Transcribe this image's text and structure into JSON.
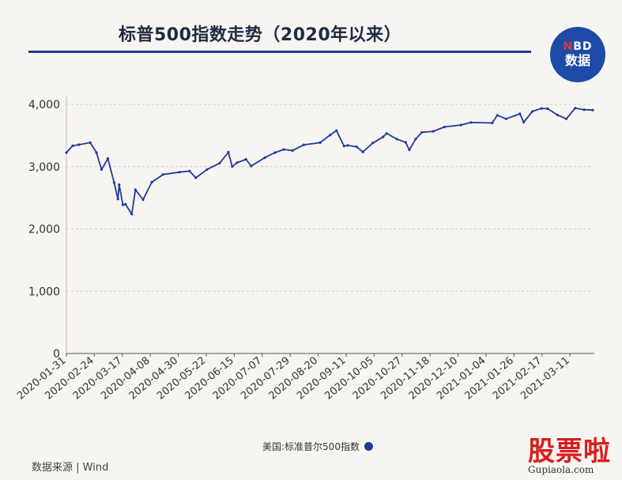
{
  "title": "标普500指数走势（2020年以来）",
  "logo": {
    "line1_n": "N",
    "line1_rest": "BD",
    "line2": "数据"
  },
  "source": "数据来源 | Wind",
  "watermark": {
    "brand": "股票啦",
    "site": "Gupiaola.com"
  },
  "chart_data": {
    "type": "line",
    "title": "标普500指数走势（2020年以来）",
    "xlabel": "",
    "ylabel": "",
    "ylim": [
      0,
      4000
    ],
    "yticks": [
      0,
      1000,
      2000,
      3000,
      4000
    ],
    "ytick_labels": [
      "0",
      "1,000",
      "2,000",
      "3,000",
      "4,000"
    ],
    "xtick_labels": [
      "2020-01-31",
      "2020-02-24",
      "2020-03-17",
      "2020-04-08",
      "2020-04-30",
      "2020-05-22",
      "2020-06-15",
      "2020-07-07",
      "2020-07-29",
      "2020-08-20",
      "2020-09-11",
      "2020-10-05",
      "2020-10-27",
      "2020-11-18",
      "2020-12-10",
      "2021-01-04",
      "2021-01-26",
      "2021-02-17",
      "2021-03-11"
    ],
    "grid": true,
    "legend_position": "bottom",
    "series": [
      {
        "name": "美国:标准普尔500指数",
        "color": "#1e3a9c",
        "x": [
          "2020-01-31",
          "2020-02-05",
          "2020-02-10",
          "2020-02-19",
          "2020-02-24",
          "2020-02-28",
          "2020-03-04",
          "2020-03-09",
          "2020-03-12",
          "2020-03-13",
          "2020-03-16",
          "2020-03-18",
          "2020-03-23",
          "2020-03-26",
          "2020-04-01",
          "2020-04-08",
          "2020-04-17",
          "2020-04-30",
          "2020-05-08",
          "2020-05-13",
          "2020-05-22",
          "2020-06-01",
          "2020-06-08",
          "2020-06-11",
          "2020-06-15",
          "2020-06-22",
          "2020-06-26",
          "2020-07-07",
          "2020-07-15",
          "2020-07-22",
          "2020-07-29",
          "2020-08-07",
          "2020-08-20",
          "2020-08-28",
          "2020-09-02",
          "2020-09-08",
          "2020-09-11",
          "2020-09-18",
          "2020-09-23",
          "2020-10-01",
          "2020-10-09",
          "2020-10-12",
          "2020-10-20",
          "2020-10-27",
          "2020-10-30",
          "2020-11-04",
          "2020-11-09",
          "2020-11-18",
          "2020-11-27",
          "2020-12-10",
          "2020-12-18",
          "2021-01-04",
          "2021-01-08",
          "2021-01-15",
          "2021-01-26",
          "2021-01-29",
          "2021-02-05",
          "2021-02-12",
          "2021-02-17",
          "2021-02-25",
          "2021-03-04",
          "2021-03-11",
          "2021-03-18",
          "2021-03-25"
        ],
        "values": [
          3225,
          3335,
          3352,
          3386,
          3225,
          2954,
          3130,
          2746,
          2480,
          2711,
          2386,
          2398,
          2237,
          2630,
          2470,
          2750,
          2875,
          2912,
          2930,
          2820,
          2955,
          3055,
          3232,
          3002,
          3066,
          3117,
          3009,
          3145,
          3226,
          3276,
          3258,
          3351,
          3385,
          3508,
          3580,
          3331,
          3341,
          3319,
          3237,
          3380,
          3477,
          3534,
          3443,
          3390,
          3270,
          3443,
          3550,
          3567,
          3638,
          3668,
          3709,
          3701,
          3825,
          3768,
          3849,
          3714,
          3887,
          3934,
          3931,
          3829,
          3768,
          3939,
          3915,
          3909
        ]
      }
    ]
  }
}
